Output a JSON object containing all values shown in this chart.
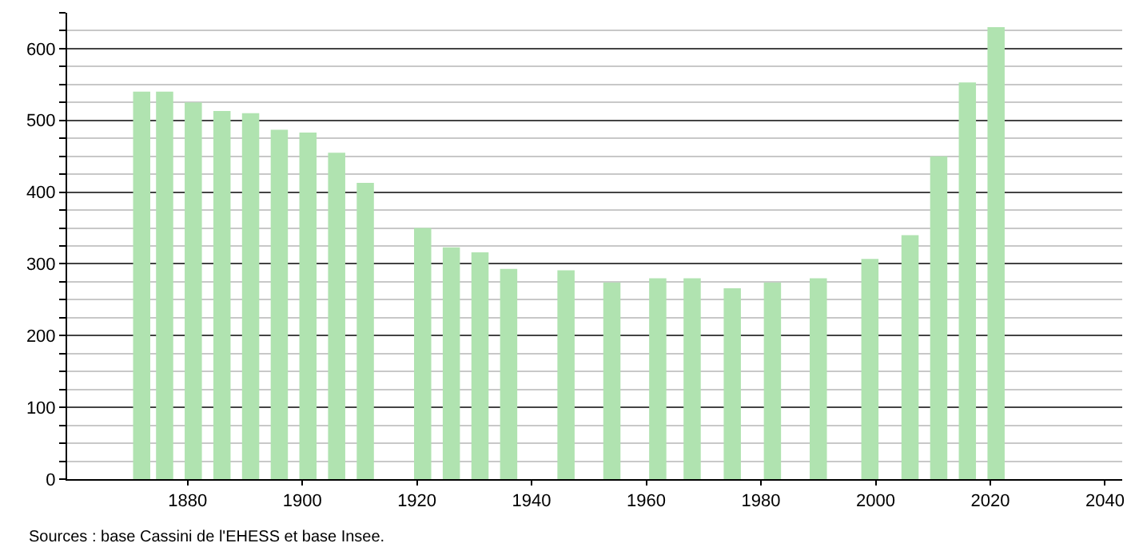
{
  "chart_data": {
    "type": "bar",
    "x": [
      1872,
      1876,
      1881,
      1886,
      1891,
      1896,
      1901,
      1906,
      1911,
      1921,
      1926,
      1931,
      1936,
      1946,
      1954,
      1962,
      1968,
      1975,
      1982,
      1990,
      1999,
      2006,
      2011,
      2016,
      2021
    ],
    "values": [
      540,
      540,
      525,
      513,
      510,
      487,
      483,
      455,
      413,
      350,
      323,
      316,
      293,
      291,
      274,
      280,
      280,
      266,
      274,
      280,
      307,
      340,
      450,
      553,
      630
    ],
    "color": "#b0e3b0",
    "xlim": [
      1859,
      2043
    ],
    "xticks": [
      1880,
      1900,
      1920,
      1940,
      1960,
      1980,
      2000,
      2020,
      2040
    ],
    "ylim": [
      0,
      650
    ],
    "yticks": [
      0,
      {
        "value": 25,
        "label": null
      },
      {
        "value": 50,
        "label": null
      },
      {
        "value": 75,
        "label": null
      },
      100,
      {
        "value": 125,
        "label": null
      },
      {
        "value": 150,
        "label": null
      },
      {
        "value": 175,
        "label": null
      },
      200,
      {
        "value": 225,
        "label": null
      },
      {
        "value": 250,
        "label": null
      },
      {
        "value": 275,
        "label": null
      },
      300,
      {
        "value": 325,
        "label": null
      },
      {
        "value": 350,
        "label": null
      },
      {
        "value": 375,
        "label": null
      },
      400,
      {
        "value": 425,
        "label": null
      },
      {
        "value": 450,
        "label": null
      },
      {
        "value": 475,
        "label": null
      },
      500,
      {
        "value": 525,
        "label": null
      },
      {
        "value": 550,
        "label": null
      },
      {
        "value": 575,
        "label": null
      },
      600,
      {
        "value": 625,
        "label": null
      },
      {
        "value": 650,
        "label": null
      }
    ],
    "grid": true,
    "annotations": [
      "Sources : base Cassini de l'EHESS et base Insee."
    ]
  }
}
